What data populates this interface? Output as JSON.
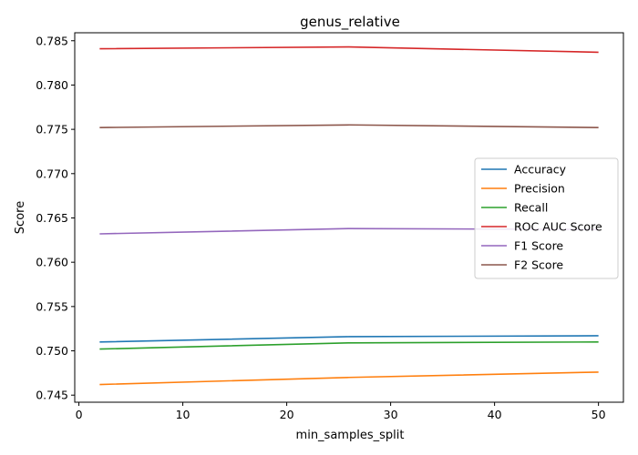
{
  "chart_data": {
    "type": "line",
    "title": "genus_relative",
    "xlabel": "min_samples_split",
    "ylabel": "Score",
    "x": [
      2,
      26,
      50
    ],
    "xlim": [
      -0.4,
      52.4
    ],
    "ylim": [
      0.7442,
      0.7859
    ],
    "xticks": [
      0,
      10,
      20,
      30,
      40,
      50
    ],
    "yticks": [
      0.745,
      0.75,
      0.755,
      0.76,
      0.765,
      0.77,
      0.775,
      0.78,
      0.785
    ],
    "legend_position": "center-right",
    "grid": false,
    "series": [
      {
        "name": "Accuracy",
        "color": "#1f77b4",
        "values": [
          0.751,
          0.7516,
          0.7517
        ]
      },
      {
        "name": "Precision",
        "color": "#ff7f0e",
        "values": [
          0.7462,
          0.747,
          0.7476
        ]
      },
      {
        "name": "Recall",
        "color": "#2ca02c",
        "values": [
          0.7502,
          0.7509,
          0.751
        ]
      },
      {
        "name": "ROC AUC Score",
        "color": "#d62728",
        "values": [
          0.7841,
          0.7843,
          0.7837
        ]
      },
      {
        "name": "F1 Score",
        "color": "#9467bd",
        "values": [
          0.7632,
          0.7638,
          0.7637
        ]
      },
      {
        "name": "F2 Score",
        "color": "#8c564b",
        "values": [
          0.7752,
          0.7755,
          0.7752
        ]
      }
    ]
  }
}
